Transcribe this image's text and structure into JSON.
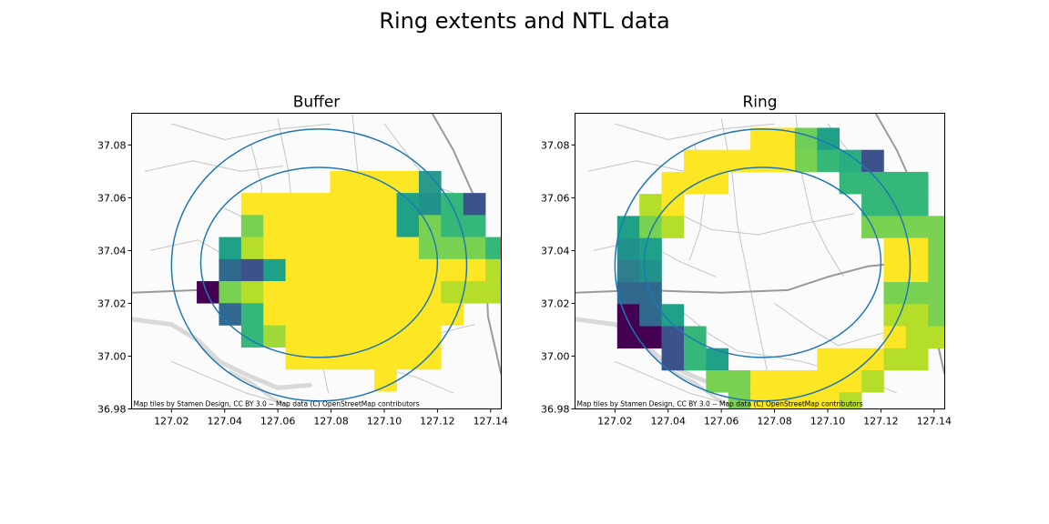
{
  "figure": {
    "title": "Ring extents and NTL data"
  },
  "chart_data": [
    {
      "type": "heatmap",
      "title": "Buffer",
      "xlim": [
        127.005,
        127.144
      ],
      "ylim": [
        36.98,
        37.092
      ],
      "xticks": [
        127.02,
        127.04,
        127.06,
        127.08,
        127.1,
        127.12,
        127.14
      ],
      "xtick_labels": [
        "127.02",
        "127.04",
        "127.06",
        "127.08",
        "127.10",
        "127.12",
        "127.14"
      ],
      "yticks": [
        36.98,
        37.0,
        37.02,
        37.04,
        37.06,
        37.08
      ],
      "ytick_labels": [
        "36.98",
        "37.00",
        "37.02",
        "37.04",
        "37.06",
        "37.08"
      ],
      "grid": false,
      "attribution": "Map tiles by Stamen Design, CC BY 3.0 -- Map data (C) OpenStreetMap contributors",
      "colormap": "viridis",
      "cell_grid": {
        "x0": 127.0295,
        "y_top": 37.0785,
        "dx": 0.00835,
        "dy": 0.00835,
        "rows": [
          "..............",
          "......YYYY8...",
          "..YYYYYYYB6A2.",
          "..GYYYYYYBGAA.",
          ".BDYYYYYYYGGGA",
          ".32BYYYYYYYYYD",
          "0GDYYYYYYYYDDD",
          ".3AYYYYYYYYY..",
          "..AFYYYYYYY...",
          "....YYYYYYY...",
          "........Y....."
        ]
      },
      "circles": [
        {
          "cx": 127.0755,
          "cy": 37.0345,
          "rx": 0.0555,
          "ry": 0.0515
        },
        {
          "cx": 127.0755,
          "cy": 37.0355,
          "rx": 0.0445,
          "ry": 0.036
        }
      ]
    },
    {
      "type": "heatmap",
      "title": "Ring",
      "xlim": [
        127.005,
        127.144
      ],
      "ylim": [
        36.98,
        37.092
      ],
      "xticks": [
        127.02,
        127.04,
        127.06,
        127.08,
        127.1,
        127.12,
        127.14
      ],
      "xtick_labels": [
        "127.02",
        "127.04",
        "127.06",
        "127.08",
        "127.10",
        "127.12",
        "127.14"
      ],
      "yticks": [
        36.98,
        37.0,
        37.02,
        37.04,
        37.06,
        37.08
      ],
      "ytick_labels": [
        "36.98",
        "37.00",
        "37.02",
        "37.04",
        "37.06",
        "37.08"
      ],
      "grid": false,
      "attribution": "Map tiles by Stamen Design, CC BY 3.0 -- Map data (C) OpenStreetMap contributors",
      "colormap": "viridis",
      "cell_grid": {
        "x0": 127.0125,
        "y_top": 37.0865,
        "dx": 0.00835,
        "dy": 0.00835,
        "rows": [
          ".......YYPB.....",
          "....YYYYYGA92...",
          "...YYY.....AAAA.",
          "..DY........AAA.",
          ".BGD........GGGG",
          ".6B..........YYG",
          ".56..........YYG",
          ".33..........GGG",
          ".03B.........DDG",
          ".002A........YDD",
          "...2AB....YYYDD.",
          ".....GGYYYYYD...",
          "......GYYYYD...."
        ]
      },
      "circles": [
        {
          "cx": 127.0755,
          "cy": 37.0345,
          "rx": 0.0555,
          "ry": 0.0515
        },
        {
          "cx": 127.0755,
          "cy": 37.0355,
          "rx": 0.0445,
          "ry": 0.036
        }
      ]
    }
  ],
  "palette": {
    "0": "#440154",
    "2": "#3b528b",
    "3": "#31688e",
    "5": "#2f7e8e",
    "6": "#21918c",
    "8": "#2c9a8a",
    "9": "#28ae80",
    "A": "#35b779",
    "B": "#1fa187",
    "D": "#b5de2b",
    "F": "#a0da39",
    "G": "#79d151",
    "P": "#6ece58",
    "Y": "#fde725"
  },
  "colors": {
    "circle": "#1f77b4",
    "road_major": "#9a9a9a",
    "road_minor": "#c4c4c4",
    "river": "#d9d9d9"
  }
}
